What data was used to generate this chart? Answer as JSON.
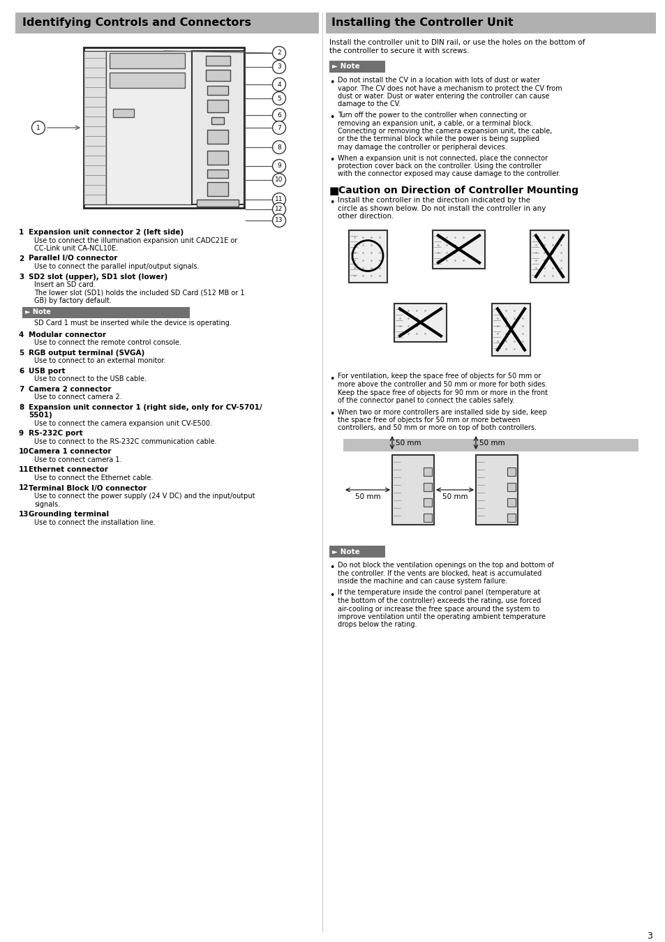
{
  "page_bg": "#ffffff",
  "left_title": "Identifying Controls and Connectors",
  "right_title": "Installing the Controller Unit",
  "title_bg": "#b0b0b0",
  "right_intro_lines": [
    "Install the controller unit to DIN rail, or use the holes on the bottom of",
    "the controller to secure it with screws."
  ],
  "note_label": "► Note",
  "note_bg": "#707070",
  "note_text_color": "#ffffff",
  "right_notes": [
    "Do not install the CV in a location with lots of dust or water vapor. The CV does not have a mechanism to protect the CV from dust or water. Dust or water entering the controller can cause damage to the CV.",
    "Turn off the power to the controller when connecting or removing an expansion unit, a cable, or a terminal block. Connecting or removing the camera expansion unit, the cable, or the the terminal block while the power is being supplied may damage the controller or peripheral devices.",
    "When a expansion unit is not connected, place the connector protection cover back on the controller. Using the controller with the connector exposed may cause damage to the controller."
  ],
  "caution_title": "Caution on Direction of Controller Mounting",
  "caution_bullet": "Install the controller in the direction indicated by the circle as shown below. Do not install the controller in any other direction.",
  "ventilation_notes": [
    "For ventilation, keep the space free of objects for 50 mm or more above the controller and 50 mm or more for both sides. Keep the space free of objects for 90 mm or more in the front of the connector panel to connect the cables safely.",
    "When two or more controllers are installed side by side, keep the space free of objects for 50 mm or more between controllers, and 50 mm or more on top of both controllers."
  ],
  "bottom_notes": [
    "Do not block the ventilation openings on the top and bottom of the controller. If the vents are blocked, heat is accumulated inside the machine and can cause system failure.",
    "If the temperature inside the control panel (temperature at the bottom of the controller) exceeds the rating, use forced air-cooling or increase the free space around the system to improve ventilation until the operating ambient temperature drops below the rating."
  ],
  "left_items": [
    {
      "num": "1",
      "bold": "Expansion unit connector 2 (left side)",
      "text": "Use to connect the illumination expansion unit CADC21E or\nCC-Link unit CA-NCL10E."
    },
    {
      "num": "2",
      "bold": "Parallel I/O connector",
      "text": "Use to connect the parallel input/output signals."
    },
    {
      "num": "3",
      "bold": "SD2 slot (upper), SD1 slot (lower)",
      "text": "Insert an SD card.\nThe lower slot (SD1) holds the included SD Card (512 MB or 1\nGB) by factory default.",
      "note": "SD Card 1 must be inserted while the device is operating."
    },
    {
      "num": "4",
      "bold": "Modular connector",
      "text": "Use to connect the remote control console."
    },
    {
      "num": "5",
      "bold": "RGB output terminal (SVGA)",
      "text": "Use to connect to an external monitor."
    },
    {
      "num": "6",
      "bold": "USB port",
      "text": "Use to connect to the USB cable."
    },
    {
      "num": "7",
      "bold": "Camera 2 connector",
      "text": "Use to connect camera 2."
    },
    {
      "num": "8",
      "bold": "Expansion unit connector 1 (right side, only for CV-5701/",
      "bold2": "5501)",
      "text": "Use to connect the camera expansion unit CV-E500."
    },
    {
      "num": "9",
      "bold": "RS-232C port",
      "text": "Use to connect to the RS-232C communication cable."
    },
    {
      "num": "10",
      "bold": "Camera 1 connector",
      "text": "Use to connect camera 1."
    },
    {
      "num": "11",
      "bold": "Ethernet connector",
      "text": "Use to connect the Ethernet cable."
    },
    {
      "num": "12",
      "bold": "Terminal Block I/O connector",
      "text": "Use to connect the power supply (24 V DC) and the input/output\nsignals."
    },
    {
      "num": "13",
      "bold": "Grounding terminal",
      "text": "Use to connect the installation line."
    }
  ],
  "page_number": "3"
}
